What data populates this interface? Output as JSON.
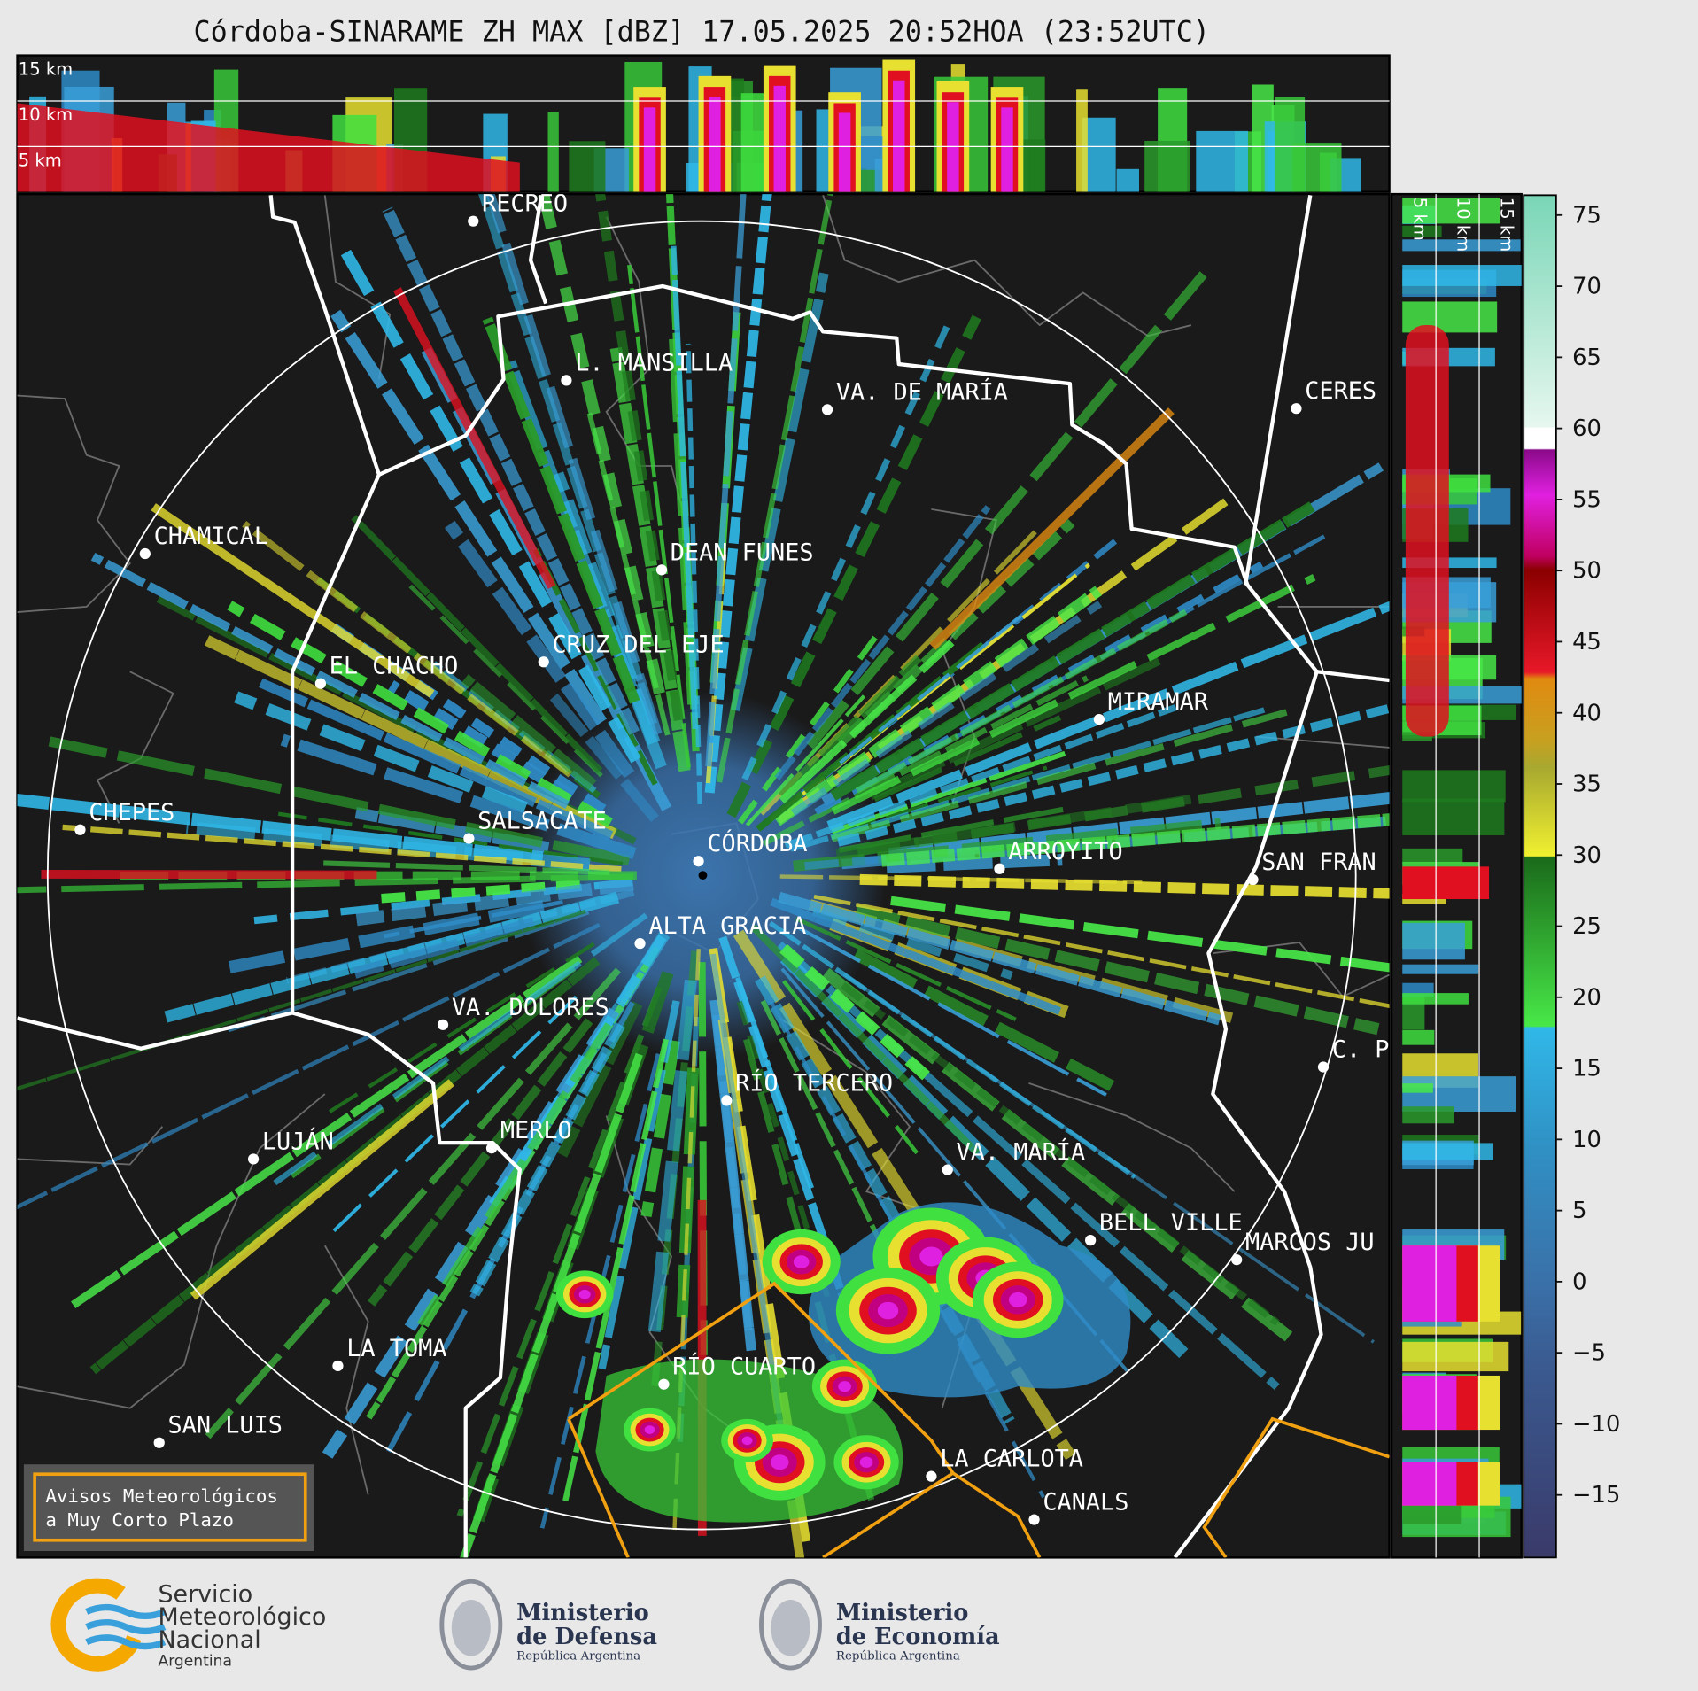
{
  "title": "Córdoba-SINARAME ZH MAX [dBZ] 17.05.2025 20:52HOA (23:52UTC)",
  "cross_sections": {
    "top": {
      "labels": [
        "15 km",
        "10 km",
        "5 km"
      ]
    },
    "right": {
      "labels": [
        "5 km",
        "10 km",
        "15 km"
      ]
    }
  },
  "cities": [
    {
      "label": "RECREO"
    },
    {
      "label": "L. MANSILLA"
    },
    {
      "label": "VA. DE MARÍA"
    },
    {
      "label": "CERES"
    },
    {
      "label": "CHAMICAL"
    },
    {
      "label": "DEAN FUNES"
    },
    {
      "label": "CRUZ DEL EJE"
    },
    {
      "label": "EL CHACHO"
    },
    {
      "label": "MIRAMAR"
    },
    {
      "label": "CHEPES"
    },
    {
      "label": "SALSACATE"
    },
    {
      "label": "CÓRDOBA"
    },
    {
      "label": "ARROYITO"
    },
    {
      "label": "SAN FRAN"
    },
    {
      "label": "ALTA GRACIA"
    },
    {
      "label": "VA. DOLORES"
    },
    {
      "label": "RÍO TERCERO"
    },
    {
      "label": "C. P"
    },
    {
      "label": "LUJÁN"
    },
    {
      "label": "MERLO"
    },
    {
      "label": "VA. MARÍA"
    },
    {
      "label": "BELL VILLE"
    },
    {
      "label": "MARCOS JU"
    },
    {
      "label": "LA TOMA"
    },
    {
      "label": "RÍO CUARTO"
    },
    {
      "label": "SAN LUIS"
    },
    {
      "label": "LA CARLOTA"
    },
    {
      "label": "CANALS"
    }
  ],
  "colorbar": {
    "lim": [
      -19.4,
      76.4
    ],
    "ticks": [
      75,
      70,
      65,
      60,
      55,
      50,
      45,
      40,
      35,
      30,
      25,
      20,
      15,
      10,
      5,
      0,
      {
        "value": -5,
        "label": "−5"
      },
      {
        "value": -10,
        "label": "−10"
      },
      {
        "value": -15,
        "label": "−15"
      }
    ]
  },
  "warning_box": {
    "lines": [
      "Avisos Meteorológicos",
      "a Muy Corto Plazo"
    ]
  },
  "logos": [
    {
      "lines": [
        "Servicio",
        "Meteorológico",
        "Nacional",
        "Argentina"
      ]
    },
    {
      "lines": [
        "Ministerio",
        "de Defensa",
        "República Argentina"
      ]
    },
    {
      "lines": [
        "Ministerio",
        "de Economía",
        "República Argentina"
      ]
    }
  ]
}
